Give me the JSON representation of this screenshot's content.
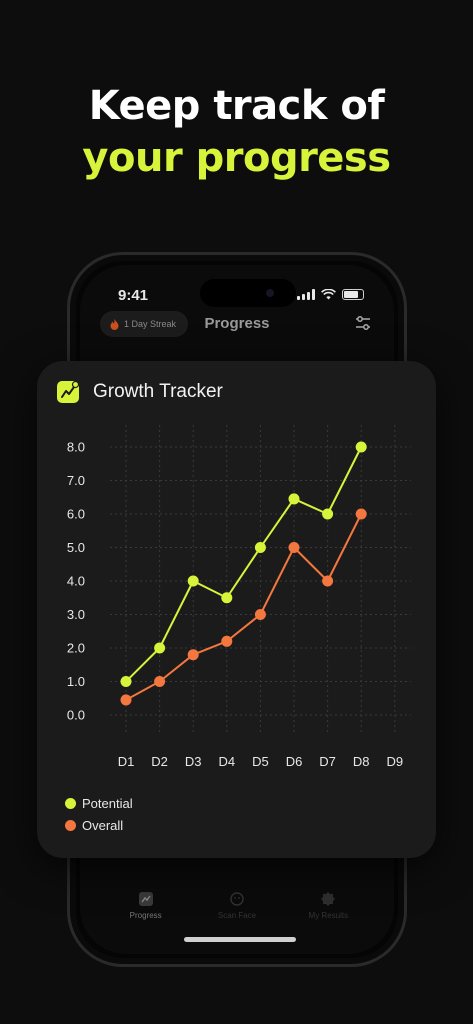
{
  "headline": {
    "line1": "Keep track of",
    "line2": "your progress"
  },
  "status_bar": {
    "time": "9:41"
  },
  "nav": {
    "streak_label": "1 Day Streak",
    "title": "Progress"
  },
  "card": {
    "title": "Growth Tracker"
  },
  "tabs": [
    {
      "label": "Progress",
      "icon": "chart-icon"
    },
    {
      "label": "Scan Face",
      "icon": "face-scan-icon"
    },
    {
      "label": "My Results",
      "icon": "badge-icon"
    }
  ],
  "colors": {
    "accent": "#d8f43a",
    "potential": "#d8f43a",
    "overall": "#f3773f",
    "card_bg": "#1b1b1b"
  },
  "chart_data": {
    "type": "line",
    "title": "",
    "xlabel": "",
    "ylabel": "",
    "categories": [
      "D1",
      "D2",
      "D3",
      "D4",
      "D5",
      "D6",
      "D7",
      "D8",
      "D9"
    ],
    "y_ticks": [
      "0.0",
      "1.0",
      "2.0",
      "3.0",
      "4.0",
      "5.0",
      "6.0",
      "7.0",
      "8.0"
    ],
    "ylim": [
      0,
      8
    ],
    "grid": true,
    "legend_position": "bottom-left",
    "series": [
      {
        "name": "Potential",
        "color": "#d8f43a",
        "values": [
          1.0,
          2.0,
          4.0,
          3.5,
          5.0,
          6.45,
          6.0,
          8.0,
          null
        ]
      },
      {
        "name": "Overall",
        "color": "#f3773f",
        "values": [
          0.45,
          1.0,
          1.8,
          2.2,
          3.0,
          5.0,
          4.0,
          6.0,
          null
        ]
      }
    ]
  }
}
